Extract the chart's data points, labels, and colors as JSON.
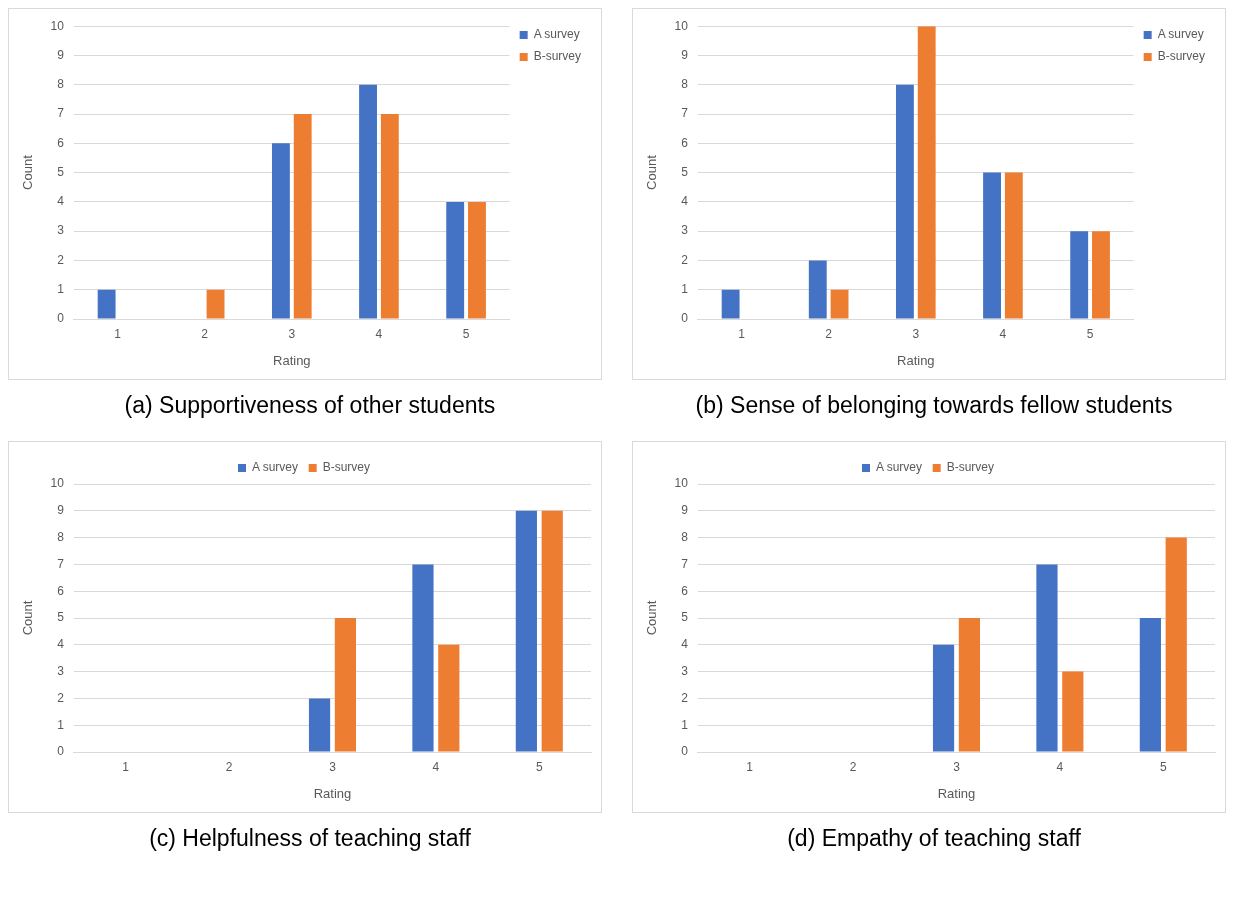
{
  "chart_data": [
    {
      "type": "bar",
      "title": "(a) Supportiveness of other students",
      "xlabel": "Rating",
      "ylabel": "Count",
      "categories": [
        "1",
        "2",
        "3",
        "4",
        "5"
      ],
      "series": [
        {
          "name": "A survey",
          "color": "#4472c4",
          "values": [
            1,
            0,
            6,
            8,
            4
          ]
        },
        {
          "name": "B-survey",
          "color": "#ed7d31",
          "values": [
            0,
            1,
            7,
            7,
            4
          ]
        }
      ],
      "ylim": [
        0,
        10
      ],
      "yticks": [
        0,
        1,
        2,
        3,
        4,
        5,
        6,
        7,
        8,
        9,
        10
      ],
      "grid": "y",
      "legend": "top right"
    },
    {
      "type": "bar",
      "title": "(b) Sense of belonging towards fellow students",
      "xlabel": "Rating",
      "ylabel": "Count",
      "categories": [
        "1",
        "2",
        "3",
        "4",
        "5"
      ],
      "series": [
        {
          "name": "A survey",
          "color": "#4472c4",
          "values": [
            1,
            2,
            8,
            5,
            3
          ]
        },
        {
          "name": "B-survey",
          "color": "#ed7d31",
          "values": [
            0,
            1,
            10,
            5,
            3
          ]
        }
      ],
      "ylim": [
        0,
        10
      ],
      "yticks": [
        0,
        1,
        2,
        3,
        4,
        5,
        6,
        7,
        8,
        9,
        10
      ],
      "grid": "y",
      "legend": "top right"
    },
    {
      "type": "bar",
      "title": "(c) Helpfulness of teaching staff",
      "xlabel": "Rating",
      "ylabel": "Count",
      "categories": [
        "1",
        "2",
        "3",
        "4",
        "5"
      ],
      "series": [
        {
          "name": "A survey",
          "color": "#4472c4",
          "values": [
            0,
            0,
            2,
            7,
            9
          ]
        },
        {
          "name": "B-survey",
          "color": "#ed7d31",
          "values": [
            0,
            0,
            5,
            4,
            9
          ]
        }
      ],
      "ylim": [
        0,
        10
      ],
      "yticks": [
        0,
        1,
        2,
        3,
        4,
        5,
        6,
        7,
        8,
        9,
        10
      ],
      "grid": "y",
      "legend": "top"
    },
    {
      "type": "bar",
      "title": "(d) Empathy of teaching staff",
      "xlabel": "Rating",
      "ylabel": "Count",
      "categories": [
        "1",
        "2",
        "3",
        "4",
        "5"
      ],
      "series": [
        {
          "name": "A survey",
          "color": "#4472c4",
          "values": [
            0,
            0,
            4,
            7,
            5
          ]
        },
        {
          "name": "B-survey",
          "color": "#ed7d31",
          "values": [
            0,
            0,
            5,
            3,
            8
          ]
        }
      ],
      "ylim": [
        0,
        10
      ],
      "yticks": [
        0,
        1,
        2,
        3,
        4,
        5,
        6,
        7,
        8,
        9,
        10
      ],
      "grid": "y",
      "legend": "top"
    }
  ]
}
